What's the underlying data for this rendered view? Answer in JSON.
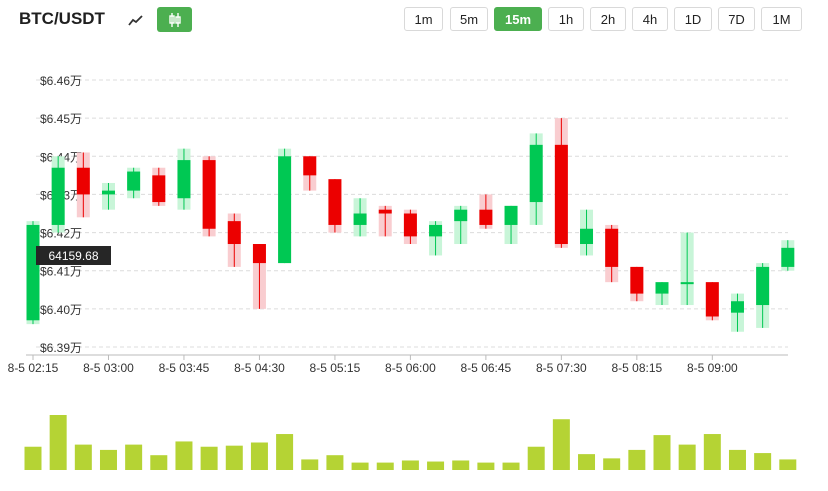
{
  "header": {
    "pair": "BTC/USDT",
    "mode_line_icon": "line-chart-icon",
    "mode_candle_icon": "candlestick-icon",
    "timeframes": [
      "1m",
      "5m",
      "15m",
      "1h",
      "2h",
      "4h",
      "1D",
      "7D",
      "1M"
    ],
    "active_timeframe": "15m"
  },
  "current_price_label": "64159.68",
  "colors": {
    "up": "#00c853",
    "down": "#ec0000",
    "up_wick": "#c8f5d8",
    "down_wick": "#f9cdd0",
    "volume": "#b5d334",
    "accent": "#4caf50"
  },
  "chart_data": {
    "type": "candlestick",
    "y_tick_labels": [
      "$6.46万",
      "$6.45万",
      "$6.44万",
      "$6.43万",
      "$6.42万",
      "$6.41万",
      "$6.40万",
      "$6.39万"
    ],
    "y_ticks": [
      64600,
      64500,
      64400,
      64300,
      64200,
      64100,
      64000,
      63900
    ],
    "ylim": [
      63890,
      64640
    ],
    "x_tick_labels": [
      "8-5 02:15",
      "8-5 03:00",
      "8-5 03:45",
      "8-5 04:30",
      "8-5 05:15",
      "8-5 06:00",
      "8-5 06:45",
      "8-5 07:30",
      "8-5 08:15",
      "8-5 09:00"
    ],
    "x_tick_candle_index": [
      0,
      3,
      6,
      9,
      12,
      15,
      18,
      21,
      24,
      27
    ],
    "grid": true,
    "candles": [
      {
        "o": 63970,
        "h": 64230,
        "l": 63960,
        "c": 64220
      },
      {
        "o": 64220,
        "h": 64400,
        "l": 64200,
        "c": 64370
      },
      {
        "o": 64370,
        "h": 64410,
        "l": 64240,
        "c": 64300
      },
      {
        "o": 64300,
        "h": 64330,
        "l": 64260,
        "c": 64310
      },
      {
        "o": 64310,
        "h": 64370,
        "l": 64290,
        "c": 64360
      },
      {
        "o": 64350,
        "h": 64370,
        "l": 64270,
        "c": 64280
      },
      {
        "o": 64290,
        "h": 64420,
        "l": 64260,
        "c": 64390
      },
      {
        "o": 64390,
        "h": 64400,
        "l": 64190,
        "c": 64210
      },
      {
        "o": 64230,
        "h": 64250,
        "l": 64110,
        "c": 64170
      },
      {
        "o": 64170,
        "h": 64170,
        "l": 64000,
        "c": 64120
      },
      {
        "o": 64120,
        "h": 64420,
        "l": 64120,
        "c": 64400
      },
      {
        "o": 64400,
        "h": 64400,
        "l": 64310,
        "c": 64350
      },
      {
        "o": 64340,
        "h": 64340,
        "l": 64200,
        "c": 64220
      },
      {
        "o": 64220,
        "h": 64290,
        "l": 64190,
        "c": 64250
      },
      {
        "o": 64260,
        "h": 64270,
        "l": 64190,
        "c": 64250
      },
      {
        "o": 64250,
        "h": 64260,
        "l": 64170,
        "c": 64190
      },
      {
        "o": 64190,
        "h": 64230,
        "l": 64140,
        "c": 64220
      },
      {
        "o": 64230,
        "h": 64270,
        "l": 64170,
        "c": 64260
      },
      {
        "o": 64260,
        "h": 64300,
        "l": 64210,
        "c": 64220
      },
      {
        "o": 64220,
        "h": 64270,
        "l": 64170,
        "c": 64270
      },
      {
        "o": 64280,
        "h": 64460,
        "l": 64220,
        "c": 64430
      },
      {
        "o": 64430,
        "h": 64500,
        "l": 64160,
        "c": 64170
      },
      {
        "o": 64170,
        "h": 64260,
        "l": 64140,
        "c": 64210
      },
      {
        "o": 64210,
        "h": 64220,
        "l": 64070,
        "c": 64110
      },
      {
        "o": 64110,
        "h": 64110,
        "l": 64020,
        "c": 64040
      },
      {
        "o": 64040,
        "h": 64070,
        "l": 64010,
        "c": 64070
      },
      {
        "o": 64070,
        "h": 64200,
        "l": 64010,
        "c": 64070
      },
      {
        "o": 64070,
        "h": 64070,
        "l": 63970,
        "c": 63980
      },
      {
        "o": 63990,
        "h": 64040,
        "l": 63940,
        "c": 64020
      },
      {
        "o": 64010,
        "h": 64120,
        "l": 63950,
        "c": 64110
      },
      {
        "o": 64110,
        "h": 64180,
        "l": 64100,
        "c": 64160
      }
    ],
    "volumes": [
      22,
      52,
      24,
      19,
      24,
      14,
      27,
      22,
      23,
      26,
      34,
      10,
      14,
      7,
      7,
      9,
      8,
      9,
      7,
      7,
      22,
      48,
      15,
      11,
      19,
      33,
      24,
      34,
      19,
      16,
      10
    ]
  }
}
